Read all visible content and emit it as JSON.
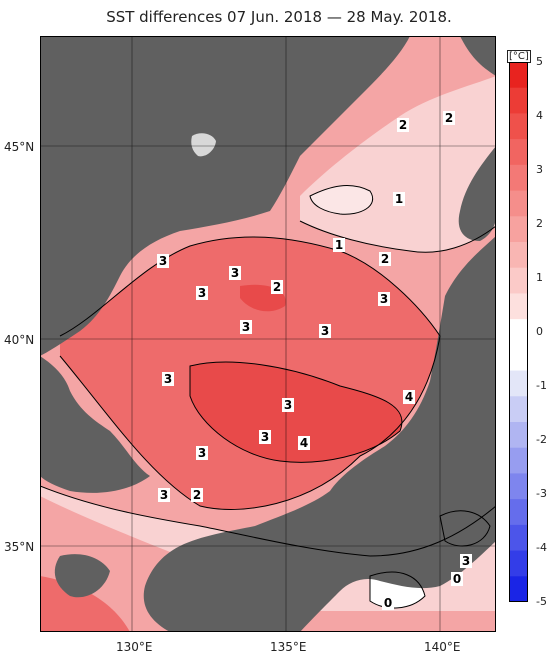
{
  "title": "SST differences 07 Jun. 2018 — 28 May. 2018.",
  "map": {
    "lon_ticks": [
      "130°E",
      "135°E",
      "140°E"
    ],
    "lat_ticks": [
      "45°N",
      "40°N",
      "35°N"
    ],
    "colors": {
      "land": "#606060",
      "sea_base": "#f0a0a0",
      "warm_1": "#f9d2d2",
      "warm_2": "#f4a5a5",
      "warm_3": "#ee6b6b",
      "warm_4": "#e84a4a",
      "neutral": "#ffffff",
      "frame": "#000000"
    },
    "contour_labels": [
      "2",
      "2",
      "1",
      "1",
      "2",
      "3",
      "3",
      "3",
      "2",
      "3",
      "3",
      "3",
      "3",
      "3",
      "4",
      "3",
      "4",
      "3",
      "3",
      "2",
      "3",
      "0",
      "0",
      "0"
    ]
  },
  "colorbar": {
    "unit": "[°C]",
    "ticks": [
      "5",
      "4",
      "3",
      "2",
      "1",
      "0",
      "-1",
      "-2",
      "-3",
      "-4",
      "-5"
    ],
    "colors_top_to_bottom": [
      "#e8231f",
      "#ec3c36",
      "#ef514b",
      "#f16561",
      "#f37976",
      "#f58e8b",
      "#f7a29f",
      "#f9b6b3",
      "#fbcac8",
      "#fde0de",
      "#ffffff",
      "#ffffff",
      "#e3e6f8",
      "#c9cdf5",
      "#b0b5f2",
      "#979df0",
      "#7e85ee",
      "#656dec",
      "#4c55ea",
      "#333de8",
      "#1a25e6"
    ]
  }
}
